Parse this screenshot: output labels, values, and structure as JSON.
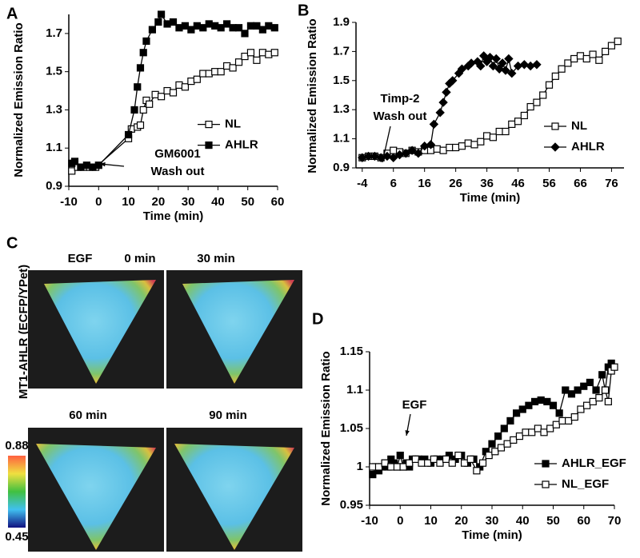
{
  "chart_data": [
    {
      "type": "line",
      "panel_label": "A",
      "y_label": "Normalized Emission Ratio",
      "x_label": "Time (min)",
      "xlim": [
        -10,
        60
      ],
      "xticks": [
        -10,
        0,
        10,
        20,
        30,
        40,
        50,
        60
      ],
      "ylim": [
        0.9,
        1.8
      ],
      "yticks": [
        0.9,
        1.1,
        1.3,
        1.5,
        1.7
      ],
      "legend": "center right",
      "annotations": [
        {
          "text": [
            "GM6001",
            "Wash out"
          ]
        }
      ],
      "series": [
        {
          "name": "NL",
          "color": "#000000",
          "marker": "square",
          "marker_fill": "#ffffff",
          "x": [
            -9,
            -7,
            -5,
            -3,
            -1,
            10,
            11,
            13,
            14,
            15,
            16,
            17,
            19,
            21,
            23,
            25,
            27,
            29,
            31,
            33,
            35,
            37,
            39,
            41,
            43,
            45,
            47,
            49,
            51,
            53,
            55,
            57,
            59
          ],
          "values": [
            0.98,
            1.0,
            1.0,
            1.0,
            1.0,
            1.15,
            1.2,
            1.21,
            1.22,
            1.3,
            1.35,
            1.33,
            1.38,
            1.37,
            1.4,
            1.39,
            1.43,
            1.42,
            1.45,
            1.46,
            1.49,
            1.49,
            1.5,
            1.5,
            1.53,
            1.52,
            1.55,
            1.58,
            1.6,
            1.56,
            1.6,
            1.59,
            1.6
          ]
        },
        {
          "name": "AHLR",
          "color": "#000000",
          "marker": "square",
          "marker_fill": "#000000",
          "x": [
            -9,
            -8,
            -6,
            -4,
            -2,
            0,
            10,
            12,
            13,
            14,
            15,
            16,
            18,
            20,
            21,
            23,
            25,
            27,
            29,
            31,
            33,
            35,
            37,
            39,
            41,
            43,
            45,
            47,
            49,
            51,
            53,
            55,
            57,
            59
          ],
          "values": [
            1.02,
            1.03,
            1.0,
            1.01,
            1.0,
            1.01,
            1.17,
            1.3,
            1.42,
            1.52,
            1.6,
            1.66,
            1.72,
            1.76,
            1.8,
            1.75,
            1.76,
            1.73,
            1.74,
            1.72,
            1.74,
            1.73,
            1.75,
            1.74,
            1.73,
            1.75,
            1.73,
            1.73,
            1.7,
            1.74,
            1.74,
            1.72,
            1.74,
            1.73
          ]
        }
      ]
    },
    {
      "type": "line",
      "panel_label": "B",
      "y_label": "Normalized Emission Ratio",
      "x_label": "Time (min)",
      "xlim": [
        -6,
        80
      ],
      "xticks": [
        -4,
        6,
        16,
        26,
        36,
        46,
        56,
        66,
        76
      ],
      "ylim": [
        0.9,
        1.9
      ],
      "yticks": [
        0.9,
        1.1,
        1.3,
        1.5,
        1.7,
        1.9
      ],
      "legend": "lower right",
      "annotations": [
        {
          "text": [
            "Timp-2",
            "Wash out"
          ]
        }
      ],
      "series": [
        {
          "name": "NL",
          "color": "#000000",
          "marker": "square",
          "marker_fill": "#ffffff",
          "x": [
            -4,
            -2,
            0,
            2,
            4,
            6,
            8,
            10,
            12,
            14,
            16,
            18,
            20,
            22,
            24,
            26,
            28,
            30,
            32,
            34,
            36,
            38,
            40,
            42,
            44,
            46,
            48,
            50,
            52,
            54,
            56,
            58,
            60,
            62,
            64,
            66,
            68,
            70,
            72,
            74,
            76,
            78
          ],
          "values": [
            0.97,
            0.98,
            0.98,
            0.97,
            1.0,
            1.02,
            1.01,
            1.0,
            1.02,
            1.01,
            1.02,
            1.02,
            1.03,
            1.02,
            1.04,
            1.04,
            1.05,
            1.07,
            1.06,
            1.08,
            1.12,
            1.11,
            1.15,
            1.15,
            1.2,
            1.22,
            1.26,
            1.32,
            1.35,
            1.4,
            1.47,
            1.53,
            1.58,
            1.62,
            1.65,
            1.67,
            1.65,
            1.68,
            1.64,
            1.7,
            1.74,
            1.77
          ]
        },
        {
          "name": "AHLR",
          "color": "#000000",
          "marker": "diamond",
          "marker_fill": "#000000",
          "x": [
            -4,
            -2,
            0,
            2,
            4,
            6,
            8,
            10,
            12,
            14,
            16,
            18,
            19,
            21,
            22,
            23,
            24,
            25,
            27,
            28,
            30,
            31,
            33,
            34,
            35,
            36,
            37,
            38,
            39,
            40,
            41,
            42,
            43,
            44,
            46,
            48,
            50,
            52
          ],
          "values": [
            0.97,
            0.98,
            0.98,
            0.97,
            0.98,
            0.97,
            0.99,
            1.0,
            1.02,
            1.0,
            1.05,
            1.06,
            1.2,
            1.28,
            1.35,
            1.42,
            1.48,
            1.5,
            1.55,
            1.58,
            1.6,
            1.62,
            1.63,
            1.6,
            1.67,
            1.63,
            1.66,
            1.6,
            1.65,
            1.58,
            1.62,
            1.57,
            1.65,
            1.55,
            1.6,
            1.61,
            1.6,
            1.61
          ]
        }
      ]
    },
    {
      "type": "line",
      "panel_label": "D",
      "y_label": "Normalized Emission Ratio",
      "x_label": "Time (min)",
      "xlim": [
        -10,
        70
      ],
      "xticks": [
        -10,
        0,
        10,
        20,
        30,
        40,
        50,
        60,
        70
      ],
      "ylim": [
        0.95,
        1.15
      ],
      "yticks": [
        0.95,
        1,
        1.05,
        1.1,
        1.15
      ],
      "legend": "lower right",
      "annotations": [
        {
          "text": [
            "EGF"
          ]
        }
      ],
      "series": [
        {
          "name": "AHLR_EGF",
          "color": "#000000",
          "marker": "square",
          "marker_fill": "#000000",
          "x": [
            -9,
            -8,
            -7,
            -6,
            -5,
            -4,
            -3,
            -2,
            -1,
            0,
            1,
            2,
            3,
            4,
            6,
            8,
            10,
            12,
            14,
            16,
            18,
            20,
            22,
            24,
            26,
            28,
            30,
            32,
            34,
            36,
            38,
            40,
            42,
            44,
            46,
            48,
            50,
            52,
            54,
            56,
            58,
            60,
            62,
            64,
            66,
            67,
            68,
            69
          ],
          "values": [
            0.99,
            1.0,
            0.995,
            1.0,
            1.005,
            1.0,
            1.01,
            1.005,
            1.0,
            1.015,
            1.0,
            1.005,
            1.0,
            1.01,
            1.01,
            1.01,
            1.005,
            1.01,
            1.01,
            1.015,
            1.01,
            1.015,
            1.005,
            1.01,
            1.0,
            1.02,
            1.03,
            1.04,
            1.05,
            1.06,
            1.07,
            1.075,
            1.08,
            1.085,
            1.087,
            1.085,
            1.08,
            1.07,
            1.1,
            1.095,
            1.1,
            1.105,
            1.11,
            1.1,
            1.12,
            1.1,
            1.13,
            1.135
          ]
        },
        {
          "name": "NL_EGF",
          "color": "#000000",
          "marker": "square",
          "marker_fill": "#ffffff",
          "x": [
            -9,
            -7,
            -5,
            -3,
            -1,
            1,
            3,
            5,
            7,
            9,
            11,
            13,
            15,
            17,
            19,
            21,
            23,
            25,
            27,
            29,
            31,
            33,
            35,
            37,
            39,
            41,
            43,
            45,
            47,
            49,
            51,
            53,
            55,
            57,
            59,
            61,
            63,
            65,
            67,
            68,
            69,
            70
          ],
          "values": [
            1.0,
            1.0,
            1.005,
            1.0,
            1.0,
            1.0,
            1.005,
            1.01,
            1.005,
            1.005,
            1.01,
            1.005,
            1.01,
            1.005,
            1.015,
            1.005,
            1.01,
            0.995,
            1.005,
            1.015,
            1.02,
            1.025,
            1.03,
            1.035,
            1.04,
            1.045,
            1.045,
            1.05,
            1.045,
            1.05,
            1.055,
            1.06,
            1.06,
            1.065,
            1.075,
            1.08,
            1.085,
            1.09,
            1.1,
            1.085,
            1.125,
            1.13
          ]
        }
      ]
    }
  ],
  "panel_c": {
    "panel_label": "C",
    "y_label": "MT1-AHLR (ECFP/YPet)",
    "frames": [
      "EGF",
      "0 min",
      "30 min",
      "60 min",
      "90 min"
    ],
    "colorbar": {
      "max": "0.88",
      "min": "0.45"
    }
  }
}
